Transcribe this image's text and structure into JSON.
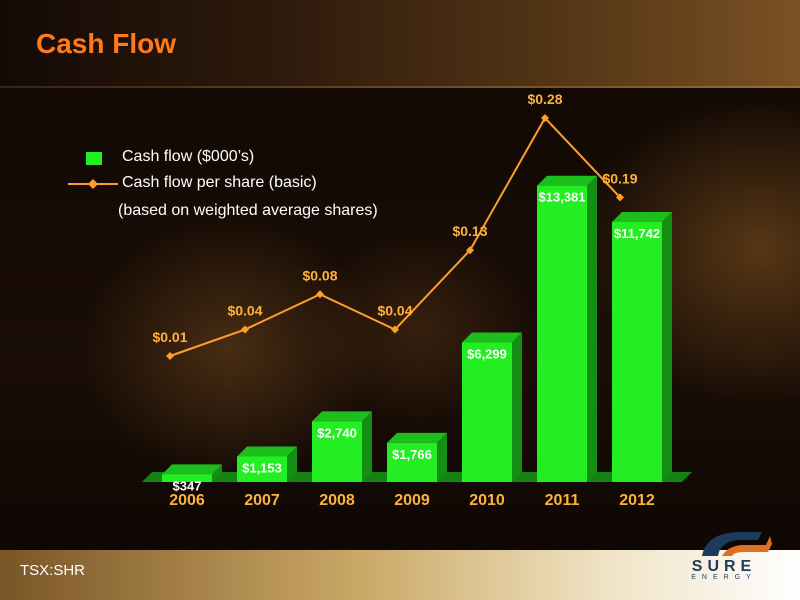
{
  "slide": {
    "title": "Cash Flow",
    "footer": "TSX:SHR"
  },
  "logo": {
    "word": "SURE",
    "sub": "ENERGY"
  },
  "colors": {
    "title": "#ff7a1a",
    "bar": "#22ee22",
    "line": "#ff9f2b",
    "label": "#ffb23a"
  },
  "legend": {
    "bar_label": "Cash flow ($000’s)",
    "line_label": "Cash flow per share (basic)",
    "note": "(based on weighted average shares)"
  },
  "chart_data": {
    "type": "bar",
    "categories": [
      "2006",
      "2007",
      "2008",
      "2009",
      "2010",
      "2011",
      "2012"
    ],
    "series": [
      {
        "name": "Cash flow ($000’s)",
        "type": "bar",
        "values": [
          347,
          1153,
          2740,
          1766,
          6299,
          13381,
          11742
        ],
        "labels": [
          "$347",
          "$1,153",
          "$2,740",
          "$1,766",
          "$6,299",
          "$13,381",
          "$11,742"
        ]
      },
      {
        "name": "Cash flow per share (basic)",
        "type": "line",
        "values": [
          0.01,
          0.04,
          0.08,
          0.04,
          0.13,
          0.28,
          0.19
        ],
        "labels": [
          "$0.01",
          "$0.04",
          "$0.08",
          "$0.04",
          "$0.13",
          "$0.28",
          "$0.19"
        ]
      }
    ],
    "title": "Cash Flow",
    "legend": "top-left",
    "grid": false
  }
}
